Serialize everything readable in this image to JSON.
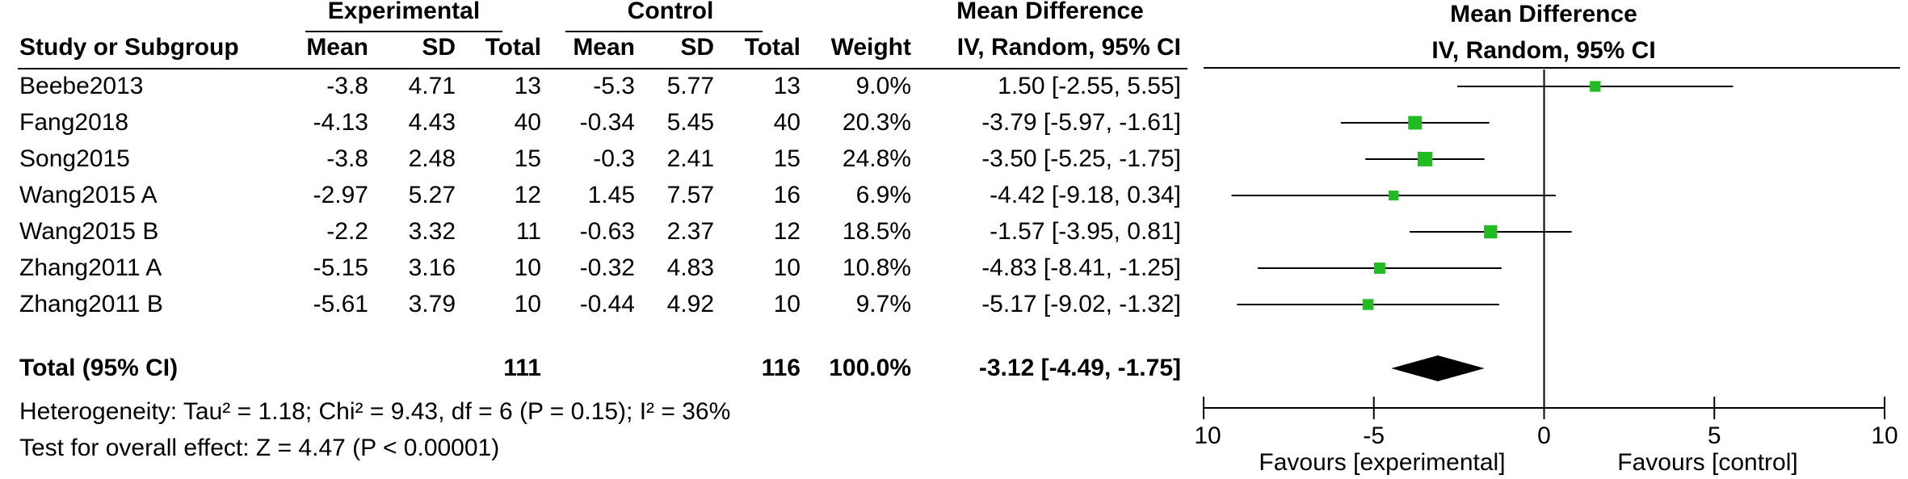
{
  "headers": {
    "group_experimental": "Experimental",
    "group_control": "Control",
    "group_effect": "Mean Difference",
    "plot_title": "Mean Difference",
    "plot_subtitle": "IV, Random, 95% CI",
    "study": "Study or Subgroup",
    "exp_mean": "Mean",
    "exp_sd": "SD",
    "exp_total": "Total",
    "ctl_mean": "Mean",
    "ctl_sd": "SD",
    "ctl_total": "Total",
    "weight": "Weight",
    "effect": "IV, Random, 95% CI"
  },
  "rows": [
    {
      "study": "Beebe2013",
      "exp_mean": "-3.8",
      "exp_sd": "4.71",
      "exp_total": "13",
      "ctl_mean": "-5.3",
      "ctl_sd": "5.77",
      "ctl_total": "13",
      "weight": "9.0%",
      "ci": "1.50 [-2.55, 5.55]"
    },
    {
      "study": "Fang2018",
      "exp_mean": "-4.13",
      "exp_sd": "4.43",
      "exp_total": "40",
      "ctl_mean": "-0.34",
      "ctl_sd": "5.45",
      "ctl_total": "40",
      "weight": "20.3%",
      "ci": "-3.79 [-5.97, -1.61]"
    },
    {
      "study": "Song2015",
      "exp_mean": "-3.8",
      "exp_sd": "2.48",
      "exp_total": "15",
      "ctl_mean": "-0.3",
      "ctl_sd": "2.41",
      "ctl_total": "15",
      "weight": "24.8%",
      "ci": "-3.50 [-5.25, -1.75]"
    },
    {
      "study": "Wang2015 A",
      "exp_mean": "-2.97",
      "exp_sd": "5.27",
      "exp_total": "12",
      "ctl_mean": "1.45",
      "ctl_sd": "7.57",
      "ctl_total": "16",
      "weight": "6.9%",
      "ci": "-4.42 [-9.18, 0.34]"
    },
    {
      "study": "Wang2015 B",
      "exp_mean": "-2.2",
      "exp_sd": "3.32",
      "exp_total": "11",
      "ctl_mean": "-0.63",
      "ctl_sd": "2.37",
      "ctl_total": "12",
      "weight": "18.5%",
      "ci": "-1.57 [-3.95, 0.81]"
    },
    {
      "study": "Zhang2011 A",
      "exp_mean": "-5.15",
      "exp_sd": "3.16",
      "exp_total": "10",
      "ctl_mean": "-0.32",
      "ctl_sd": "4.83",
      "ctl_total": "10",
      "weight": "10.8%",
      "ci": "-4.83 [-8.41, -1.25]"
    },
    {
      "study": "Zhang2011 B",
      "exp_mean": "-5.61",
      "exp_sd": "3.79",
      "exp_total": "10",
      "ctl_mean": "-0.44",
      "ctl_sd": "4.92",
      "ctl_total": "10",
      "weight": "9.7%",
      "ci": "-5.17 [-9.02, -1.32]"
    }
  ],
  "total": {
    "label": "Total (95% CI)",
    "exp_total": "111",
    "ctl_total": "116",
    "weight": "100.0%",
    "ci": "-3.12 [-4.49, -1.75]"
  },
  "heterogeneity": "Heterogeneity: Tau² = 1.18; Chi² = 9.43, df = 6 (P = 0.15); I² = 36%",
  "overall_effect": "Test for overall effect: Z = 4.47 (P < 0.00001)",
  "colors": {
    "marker": "#22bb22",
    "diamond": "#000000",
    "line": "#000000"
  },
  "chart_data": {
    "type": "forest",
    "title": "Mean Difference",
    "subtitle": "IV, Random, 95% CI",
    "xlim": [
      -10,
      10
    ],
    "ticks": [
      -10,
      -5,
      0,
      5,
      10
    ],
    "tick_labels": [
      "-10",
      "-5",
      "0",
      "5",
      "10"
    ],
    "favours_left": "Favours [experimental]",
    "favours_right": "Favours [control]",
    "studies": [
      {
        "name": "Beebe2013",
        "md": 1.5,
        "lo": -2.55,
        "hi": 5.55,
        "weight": 9.0
      },
      {
        "name": "Fang2018",
        "md": -3.79,
        "lo": -5.97,
        "hi": -1.61,
        "weight": 20.3
      },
      {
        "name": "Song2015",
        "md": -3.5,
        "lo": -5.25,
        "hi": -1.75,
        "weight": 24.8
      },
      {
        "name": "Wang2015 A",
        "md": -4.42,
        "lo": -9.18,
        "hi": 0.34,
        "weight": 6.9
      },
      {
        "name": "Wang2015 B",
        "md": -1.57,
        "lo": -3.95,
        "hi": 0.81,
        "weight": 18.5
      },
      {
        "name": "Zhang2011 A",
        "md": -4.83,
        "lo": -8.41,
        "hi": -1.25,
        "weight": 10.8
      },
      {
        "name": "Zhang2011 B",
        "md": -5.17,
        "lo": -9.02,
        "hi": -1.32,
        "weight": 9.7
      }
    ],
    "pooled": {
      "md": -3.12,
      "lo": -4.49,
      "hi": -1.75
    }
  }
}
